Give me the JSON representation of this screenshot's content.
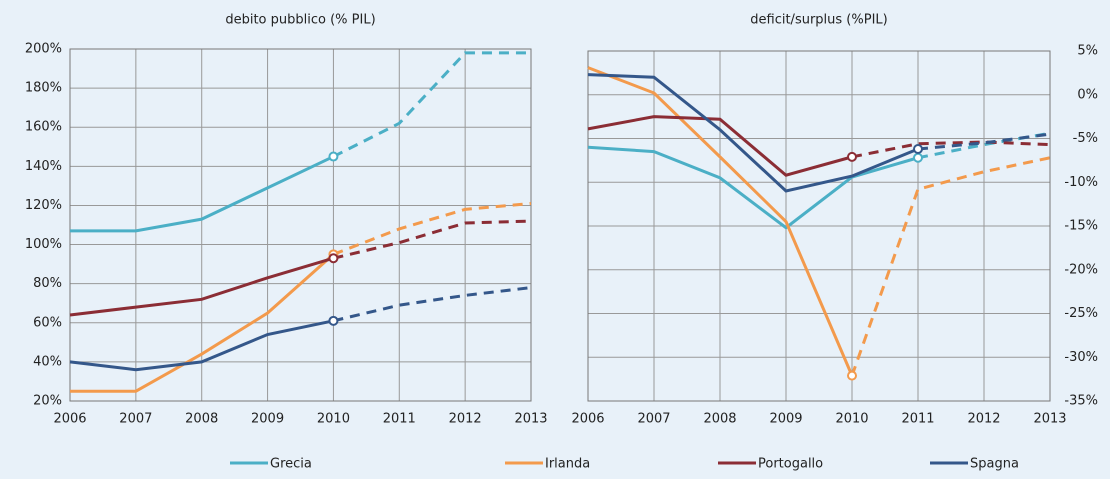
{
  "chart_data": [
    {
      "type": "line",
      "title": "debito pubblico (% PIL)",
      "y_axis_side": "left",
      "grid": true,
      "x": [
        2006,
        2007,
        2008,
        2009,
        2010,
        2011,
        2012,
        2013
      ],
      "xlim": [
        2006,
        2013
      ],
      "xticks": [
        2006,
        2007,
        2008,
        2009,
        2010,
        2011,
        2012,
        2013
      ],
      "ylim": [
        20,
        200
      ],
      "yticks": [
        {
          "value": 20,
          "label": "20%"
        },
        {
          "value": 40,
          "label": "40%"
        },
        {
          "value": 60,
          "label": "60%"
        },
        {
          "value": 80,
          "label": "80%"
        },
        {
          "value": 100,
          "label": "100%"
        },
        {
          "value": 120,
          "label": "120%"
        },
        {
          "value": 140,
          "label": "140%"
        },
        {
          "value": 160,
          "label": "160%"
        },
        {
          "value": 180,
          "label": "180%"
        },
        {
          "value": 200,
          "label": "200%"
        }
      ],
      "series": [
        {
          "name": "Grecia",
          "color": "#4bafc6",
          "dashed_from": 2010,
          "values": [
            107,
            107,
            113,
            129,
            145,
            162,
            198,
            198
          ]
        },
        {
          "name": "Irlanda",
          "color": "#f39a4c",
          "dashed_from": 2010,
          "values": [
            25,
            25,
            44,
            65,
            95,
            108,
            118,
            121
          ]
        },
        {
          "name": "Portogallo",
          "color": "#8b2d35",
          "dashed_from": 2010,
          "values": [
            64,
            68,
            72,
            83,
            93,
            101,
            111,
            112
          ]
        },
        {
          "name": "Spagna",
          "color": "#34578a",
          "dashed_from": 2010,
          "values": [
            40,
            36,
            40,
            54,
            61,
            69,
            74,
            78
          ]
        }
      ]
    },
    {
      "type": "line",
      "title": "deficit/surplus (%PIL)",
      "y_axis_side": "right",
      "grid": true,
      "x": [
        2006,
        2007,
        2008,
        2009,
        2010,
        2011,
        2012,
        2013
      ],
      "xlim": [
        2006,
        2013
      ],
      "xticks": [
        2006,
        2007,
        2008,
        2009,
        2010,
        2011,
        2012,
        2013
      ],
      "ylim": [
        -35,
        5
      ],
      "yticks": [
        {
          "value": -35,
          "label": "-35%"
        },
        {
          "value": -30,
          "label": "-30%"
        },
        {
          "value": -25,
          "label": "-25%"
        },
        {
          "value": -20,
          "label": "-20%"
        },
        {
          "value": -15,
          "label": "-15%"
        },
        {
          "value": -10,
          "label": "-10%"
        },
        {
          "value": -5,
          "label": "-5%"
        },
        {
          "value": 0,
          "label": "0%"
        },
        {
          "value": 5,
          "label": "5%"
        }
      ],
      "series": [
        {
          "name": "Grecia",
          "color": "#4bafc6",
          "dashed_from": 2011,
          "values": [
            -6.0,
            -6.5,
            -9.5,
            -15.2,
            -9.4,
            -7.2,
            -5.7,
            -4.4
          ]
        },
        {
          "name": "Irlanda",
          "color": "#f39a4c",
          "dashed_from": 2010,
          "values": [
            3.1,
            0.2,
            -7.1,
            -14.5,
            -32.1,
            -10.8,
            -8.8,
            -7.2
          ]
        },
        {
          "name": "Portogallo",
          "color": "#8b2d35",
          "dashed_from": 2010,
          "values": [
            -3.9,
            -2.5,
            -2.8,
            -9.2,
            -7.1,
            -5.6,
            -5.4,
            -5.7
          ]
        },
        {
          "name": "Spagna",
          "color": "#34578a",
          "dashed_from": 2011,
          "values": [
            2.3,
            2.0,
            -4.0,
            -11.0,
            -9.3,
            -6.2,
            -5.5,
            -4.5
          ]
        }
      ]
    }
  ]
}
